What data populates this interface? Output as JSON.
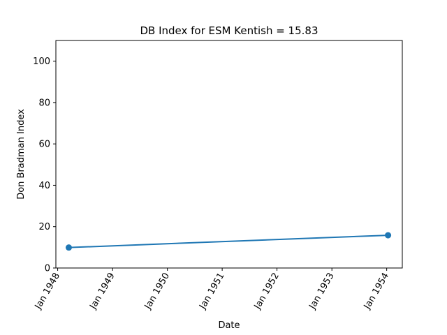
{
  "chart_data": {
    "type": "line",
    "title": "DB Index for ESM Kentish = 15.83",
    "xlabel": "Date",
    "ylabel": "Don Bradman Index",
    "x_ticks": [
      "Jan 1948",
      "Jan 1949",
      "Jan 1950",
      "Jan 1951",
      "Jan 1952",
      "Jan 1953",
      "Jan 1954"
    ],
    "y_ticks": [
      "0",
      "20",
      "40",
      "60",
      "80",
      "100"
    ],
    "ylim": [
      0,
      110
    ],
    "xlim": [
      "1947-12-20",
      "1954-04-15"
    ],
    "grid": false,
    "series": [
      {
        "color": "#1f77b4",
        "points": [
          {
            "x": "1948-03-15",
            "y": 9.9
          },
          {
            "x": "1954-01-10",
            "y": 15.83
          }
        ]
      }
    ]
  }
}
